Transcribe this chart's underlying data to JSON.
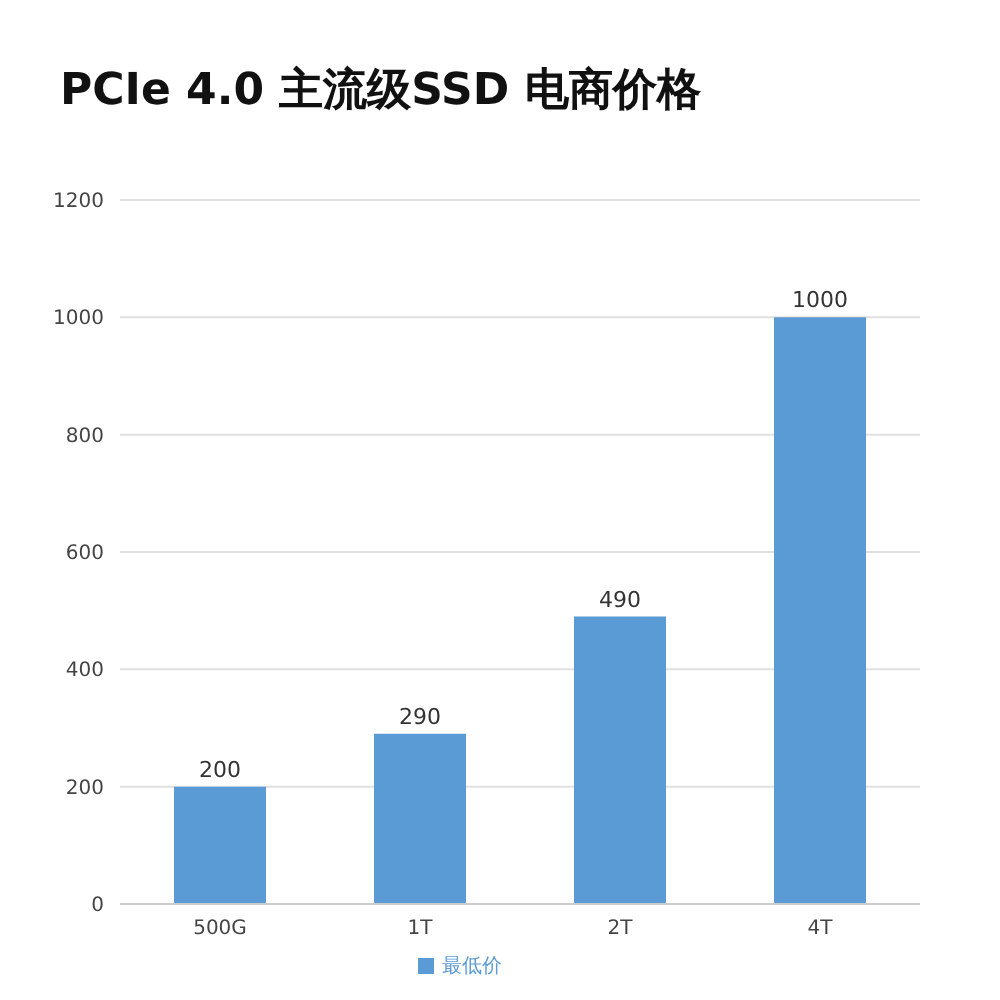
{
  "chart_data": {
    "type": "bar",
    "title": "PCIe 4.0 主流级SSD 电商价格",
    "categories": [
      "500G",
      "1T",
      "2T",
      "4T"
    ],
    "series": [
      {
        "name": "最低价",
        "color": "#5b9bd5",
        "values": [
          200,
          290,
          490,
          1000
        ]
      }
    ],
    "ylim": [
      0,
      1200
    ],
    "yticks": [
      0,
      200,
      400,
      600,
      800,
      1000,
      1200
    ],
    "grid": "y",
    "legend": "bottom",
    "data_labels": true
  }
}
